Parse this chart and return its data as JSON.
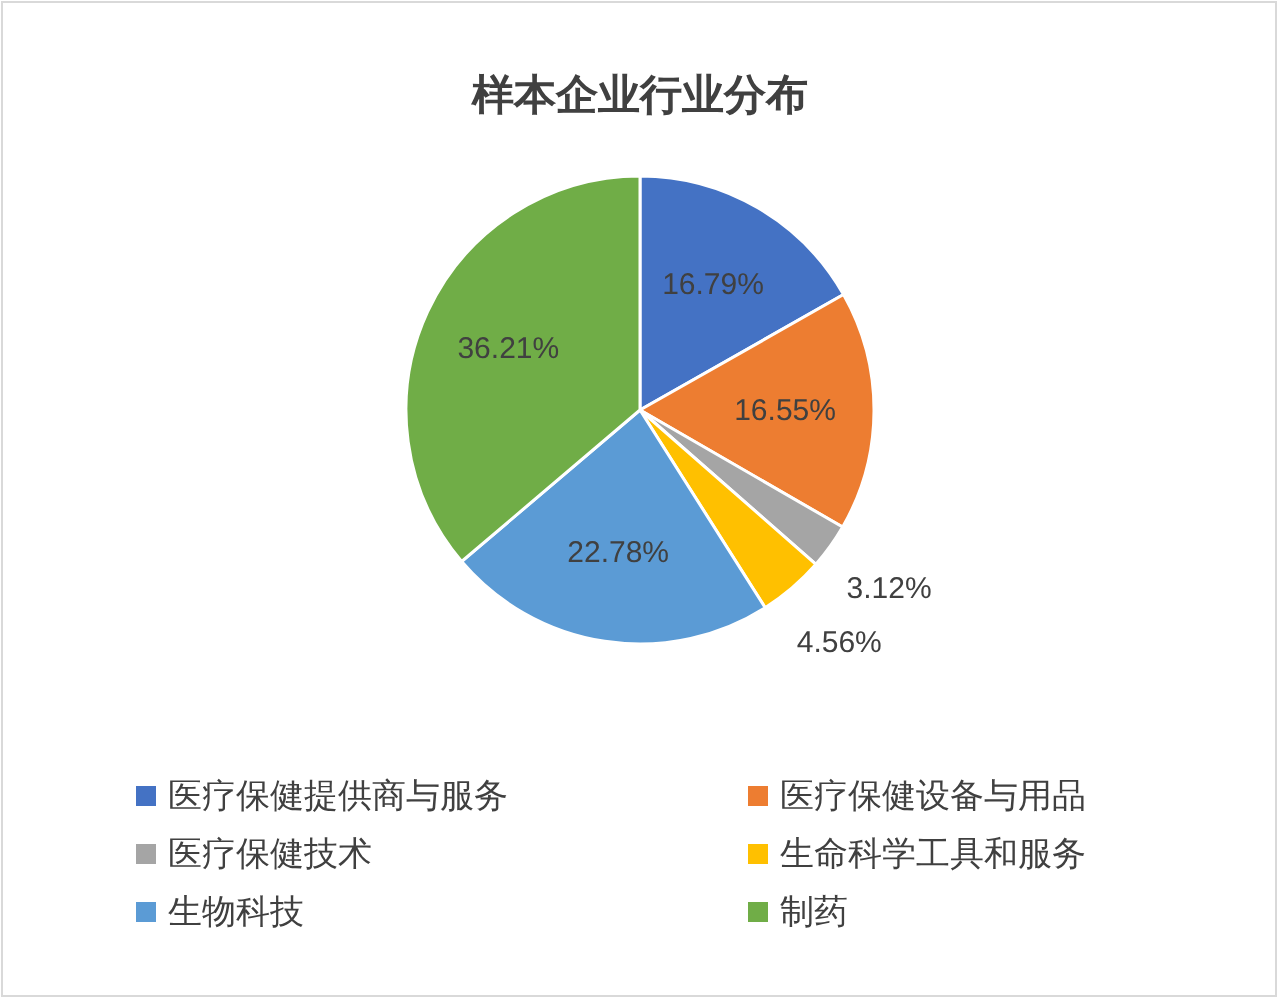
{
  "chart_data": {
    "type": "pie",
    "title": "样本企业行业分布",
    "categories": [
      "医疗保健提供商与服务",
      "医疗保健设备与用品",
      "医疗保健技术",
      "生命科学工具和服务",
      "生物科技",
      "制药"
    ],
    "values": [
      16.79,
      16.55,
      3.12,
      4.56,
      22.78,
      36.21
    ],
    "colors": [
      "#4472c4",
      "#ed7d31",
      "#a5a5a5",
      "#ffc000",
      "#5b9bd5",
      "#70ad47"
    ],
    "value_labels": [
      "16.79%",
      "16.55%",
      "3.12%",
      "4.56%",
      "22.78%",
      "36.21%"
    ],
    "legend": "bottom"
  }
}
